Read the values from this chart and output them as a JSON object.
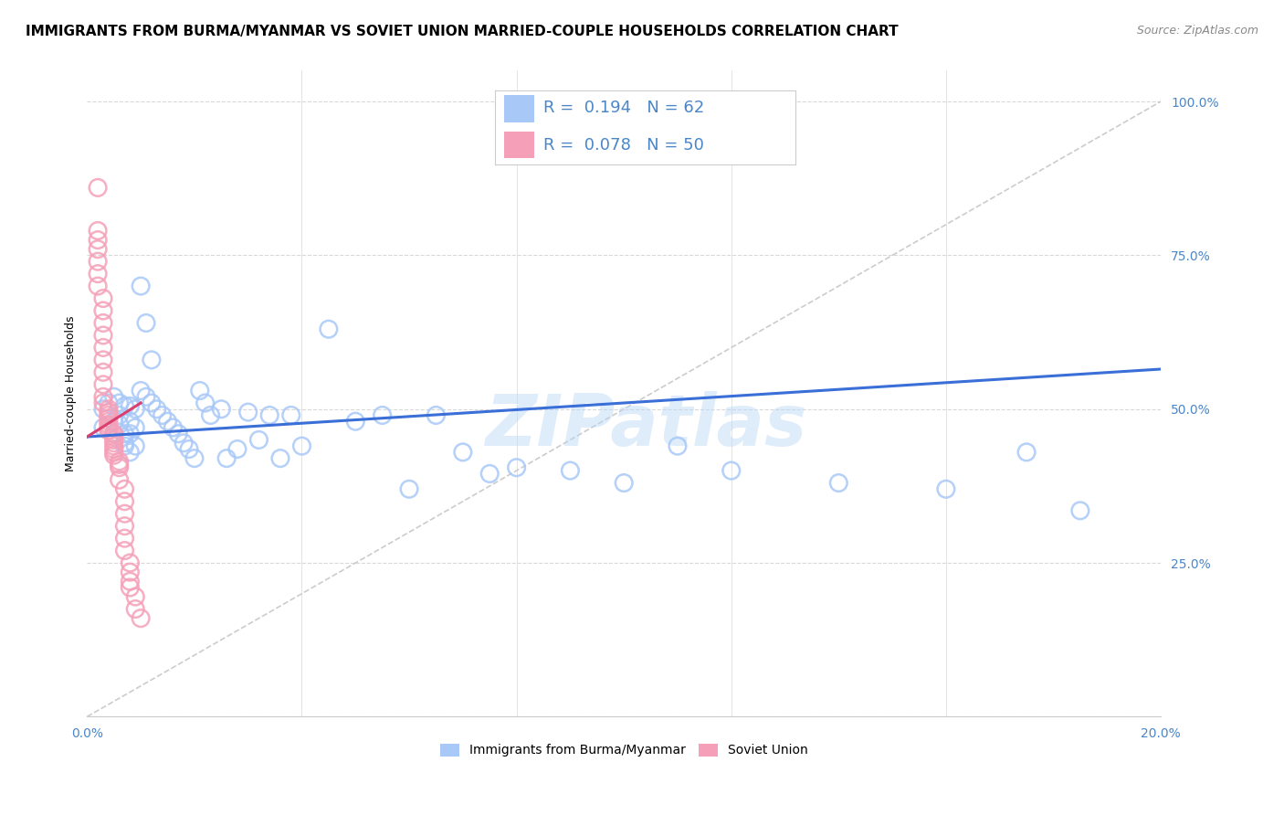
{
  "title": "IMMIGRANTS FROM BURMA/MYANMAR VS SOVIET UNION MARRIED-COUPLE HOUSEHOLDS CORRELATION CHART",
  "source": "Source: ZipAtlas.com",
  "ylabel": "Married-couple Households",
  "x_min": 0.0,
  "x_max": 0.2,
  "y_min": 0.0,
  "y_max": 1.05,
  "y_ticks": [
    0.0,
    0.25,
    0.5,
    0.75,
    1.0
  ],
  "y_tick_labels": [
    "",
    "25.0%",
    "50.0%",
    "75.0%",
    "100.0%"
  ],
  "x_tick_positions": [
    0.0,
    0.04,
    0.08,
    0.12,
    0.16,
    0.2
  ],
  "legend_blue_R": "0.194",
  "legend_blue_N": "62",
  "legend_pink_R": "0.078",
  "legend_pink_N": "50",
  "scatter_blue_color": "#a8c8f8",
  "scatter_pink_color": "#f5a0b8",
  "scatter_blue_edge": "#a8c8f8",
  "scatter_pink_edge": "#f5a0b8",
  "line_blue_color": "#3a6fd8",
  "line_pink_color": "#d84070",
  "diagonal_color": "#cccccc",
  "watermark": "ZIPatlas",
  "blue_scatter_x": [
    0.003,
    0.003,
    0.004,
    0.005,
    0.005,
    0.005,
    0.006,
    0.006,
    0.006,
    0.007,
    0.007,
    0.007,
    0.007,
    0.008,
    0.008,
    0.008,
    0.008,
    0.009,
    0.009,
    0.009,
    0.01,
    0.01,
    0.011,
    0.011,
    0.012,
    0.012,
    0.013,
    0.014,
    0.015,
    0.016,
    0.017,
    0.018,
    0.019,
    0.02,
    0.021,
    0.022,
    0.023,
    0.025,
    0.026,
    0.028,
    0.03,
    0.032,
    0.034,
    0.036,
    0.038,
    0.04,
    0.045,
    0.05,
    0.055,
    0.06,
    0.065,
    0.07,
    0.075,
    0.08,
    0.09,
    0.1,
    0.11,
    0.12,
    0.14,
    0.16,
    0.175,
    0.185
  ],
  "blue_scatter_y": [
    0.5,
    0.47,
    0.51,
    0.52,
    0.48,
    0.46,
    0.51,
    0.49,
    0.475,
    0.505,
    0.46,
    0.445,
    0.44,
    0.505,
    0.48,
    0.46,
    0.43,
    0.5,
    0.47,
    0.44,
    0.7,
    0.53,
    0.64,
    0.52,
    0.58,
    0.51,
    0.5,
    0.49,
    0.48,
    0.47,
    0.46,
    0.445,
    0.435,
    0.42,
    0.53,
    0.51,
    0.49,
    0.5,
    0.42,
    0.435,
    0.495,
    0.45,
    0.49,
    0.42,
    0.49,
    0.44,
    0.63,
    0.48,
    0.49,
    0.37,
    0.49,
    0.43,
    0.395,
    0.405,
    0.4,
    0.38,
    0.44,
    0.4,
    0.38,
    0.37,
    0.43,
    0.335
  ],
  "pink_scatter_x": [
    0.002,
    0.002,
    0.002,
    0.002,
    0.002,
    0.002,
    0.002,
    0.003,
    0.003,
    0.003,
    0.003,
    0.003,
    0.003,
    0.003,
    0.003,
    0.003,
    0.003,
    0.004,
    0.004,
    0.004,
    0.004,
    0.004,
    0.004,
    0.004,
    0.004,
    0.005,
    0.005,
    0.005,
    0.005,
    0.005,
    0.005,
    0.005,
    0.005,
    0.006,
    0.006,
    0.006,
    0.006,
    0.007,
    0.007,
    0.007,
    0.007,
    0.007,
    0.007,
    0.008,
    0.008,
    0.008,
    0.008,
    0.009,
    0.009,
    0.01
  ],
  "pink_scatter_y": [
    0.86,
    0.79,
    0.775,
    0.76,
    0.74,
    0.72,
    0.7,
    0.68,
    0.66,
    0.64,
    0.62,
    0.6,
    0.58,
    0.56,
    0.54,
    0.52,
    0.51,
    0.5,
    0.495,
    0.49,
    0.485,
    0.48,
    0.475,
    0.47,
    0.465,
    0.46,
    0.455,
    0.45,
    0.445,
    0.44,
    0.435,
    0.43,
    0.425,
    0.415,
    0.41,
    0.405,
    0.385,
    0.37,
    0.35,
    0.33,
    0.31,
    0.29,
    0.27,
    0.25,
    0.235,
    0.22,
    0.21,
    0.195,
    0.175,
    0.16
  ],
  "blue_line_x": [
    0.0,
    0.2
  ],
  "blue_line_y": [
    0.455,
    0.565
  ],
  "pink_line_x": [
    0.0,
    0.01
  ],
  "pink_line_y": [
    0.455,
    0.51
  ],
  "title_fontsize": 11,
  "axis_label_fontsize": 9,
  "tick_fontsize": 10,
  "legend_fontsize": 13,
  "tick_color": "#4a86c8",
  "grid_color": "#d8d8d8",
  "background_color": "#ffffff"
}
